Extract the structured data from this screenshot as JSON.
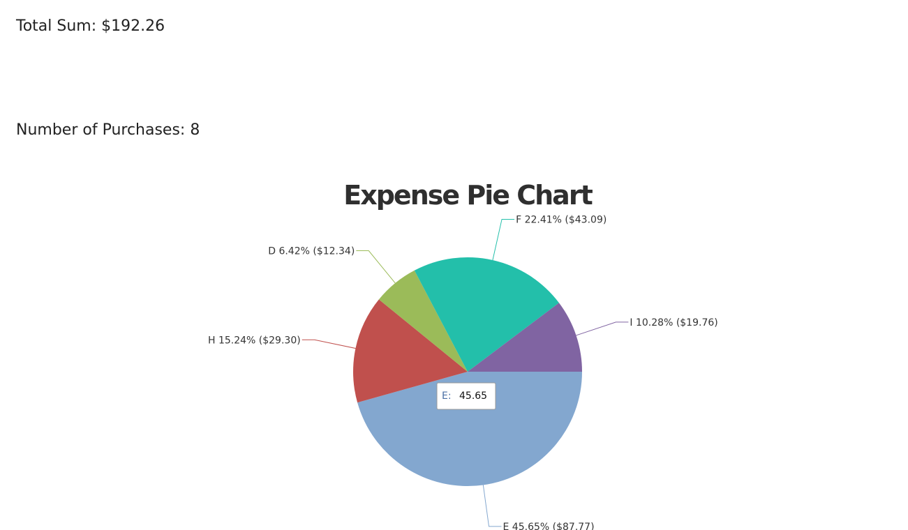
{
  "summary": {
    "total_label": "Total Sum: $192.26",
    "count_label": "Number of Purchases: 8"
  },
  "tooltip": {
    "name": "E:",
    "value": "45.65",
    "name_color": "#4a6fa5"
  },
  "chart_data": {
    "type": "pie",
    "title": "Expense Pie Chart",
    "start_angle_deg": 0,
    "slices": [
      {
        "name": "E",
        "percent": 45.65,
        "amount": 87.77,
        "label": "E 45.65% ($87.77)",
        "color": "#83a7cf"
      },
      {
        "name": "H",
        "percent": 15.24,
        "amount": 29.3,
        "label": "H 15.24% ($29.30)",
        "color": "#c0504d"
      },
      {
        "name": "D",
        "percent": 6.42,
        "amount": 12.34,
        "label": "D 6.42% ($12.34)",
        "color": "#9bbb59"
      },
      {
        "name": "F",
        "percent": 22.41,
        "amount": 43.09,
        "label": "F 22.41% ($43.09)",
        "color": "#23bfaa"
      },
      {
        "name": "I",
        "percent": 10.28,
        "amount": 19.76,
        "label": "I 10.28% ($19.76)",
        "color": "#8064a2"
      }
    ]
  }
}
